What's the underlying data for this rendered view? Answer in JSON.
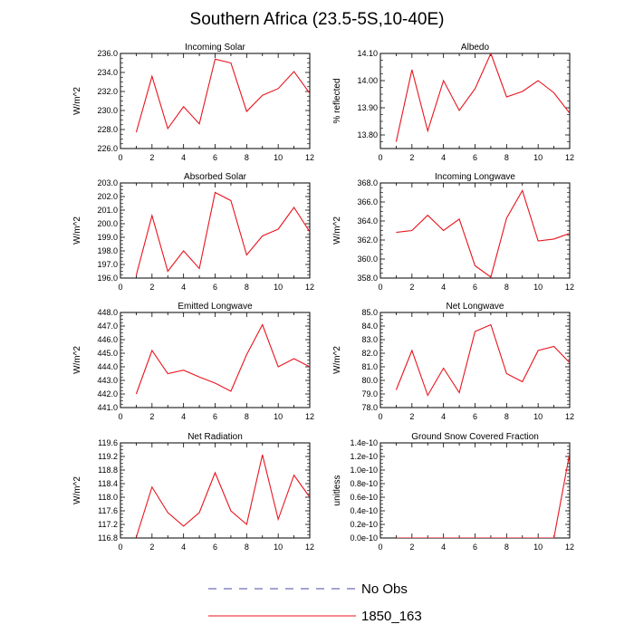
{
  "figure": {
    "title": "Southern Africa (23.5-5S,10-40E)",
    "line_color": "#e8141e"
  },
  "legend": [
    {
      "label": "No Obs",
      "color": "#4a4aa8",
      "style": "dashed"
    },
    {
      "label": "1850_163",
      "color": "#e8141e",
      "style": "solid"
    }
  ],
  "chart_data": [
    {
      "type": "line",
      "title": "Incoming Solar",
      "ylabel": "W/m^2",
      "xlim": [
        0,
        12
      ],
      "ylim": [
        226,
        236
      ],
      "x_ticks": [
        "0",
        "2",
        "4",
        "6",
        "8",
        "10",
        "12"
      ],
      "y_ticks": [
        "226.0",
        "228.0",
        "230.0",
        "232.0",
        "234.0",
        "236.0"
      ],
      "x": [
        1,
        2,
        3,
        4,
        5,
        6,
        7,
        8,
        9,
        10,
        11,
        12
      ],
      "series": [
        {
          "name": "1850_163",
          "values": [
            227.7,
            233.6,
            228.1,
            230.4,
            228.6,
            235.4,
            235.0,
            229.9,
            231.6,
            232.3,
            234.1,
            231.8
          ]
        }
      ]
    },
    {
      "type": "line",
      "title": "Albedo",
      "ylabel": "% reflected",
      "xlim": [
        0,
        12
      ],
      "ylim": [
        13.75,
        14.1
      ],
      "x_ticks": [
        "0",
        "2",
        "4",
        "6",
        "8",
        "10",
        "12"
      ],
      "y_ticks": [
        "13.80",
        "13.90",
        "14.00",
        "14.10"
      ],
      "x": [
        1,
        2,
        3,
        4,
        5,
        6,
        7,
        8,
        9,
        10,
        11,
        12
      ],
      "series": [
        {
          "name": "1850_163",
          "values": [
            13.775,
            14.04,
            13.815,
            14.0,
            13.89,
            13.97,
            14.1,
            13.94,
            13.96,
            14.0,
            13.955,
            13.88
          ]
        }
      ]
    },
    {
      "type": "line",
      "title": "Absorbed Solar",
      "ylabel": "W/m^2",
      "xlim": [
        0,
        12
      ],
      "ylim": [
        196,
        203
      ],
      "x_ticks": [
        "0",
        "2",
        "4",
        "6",
        "8",
        "10",
        "12"
      ],
      "y_ticks": [
        "196.0",
        "197.0",
        "198.0",
        "199.0",
        "200.0",
        "201.0",
        "202.0",
        "203.0"
      ],
      "x": [
        1,
        2,
        3,
        4,
        5,
        6,
        7,
        8,
        9,
        10,
        11,
        12
      ],
      "series": [
        {
          "name": "1850_163",
          "values": [
            196.2,
            200.6,
            196.5,
            198.0,
            196.7,
            202.3,
            201.7,
            197.7,
            199.1,
            199.6,
            201.2,
            199.4
          ]
        }
      ]
    },
    {
      "type": "line",
      "title": "Incoming Longwave",
      "ylabel": "W/m^2",
      "xlim": [
        0,
        12
      ],
      "ylim": [
        358,
        368
      ],
      "x_ticks": [
        "0",
        "2",
        "4",
        "6",
        "8",
        "10",
        "12"
      ],
      "y_ticks": [
        "358.0",
        "360.0",
        "362.0",
        "364.0",
        "366.0",
        "368.0"
      ],
      "x": [
        1,
        2,
        3,
        4,
        5,
        6,
        7,
        8,
        9,
        10,
        11,
        12
      ],
      "series": [
        {
          "name": "1850_163",
          "values": [
            362.8,
            363.0,
            364.6,
            363.0,
            364.2,
            359.3,
            358.1,
            364.3,
            367.2,
            361.9,
            362.1,
            362.7
          ]
        }
      ]
    },
    {
      "type": "line",
      "title": "Emitted Longwave",
      "ylabel": "W/m^2",
      "xlim": [
        0,
        12
      ],
      "ylim": [
        441,
        448
      ],
      "x_ticks": [
        "0",
        "2",
        "4",
        "6",
        "8",
        "10",
        "12"
      ],
      "y_ticks": [
        "441.0",
        "442.0",
        "443.0",
        "444.0",
        "445.0",
        "446.0",
        "447.0",
        "448.0"
      ],
      "x": [
        1,
        2,
        3,
        4,
        5,
        6,
        7,
        8,
        9,
        10,
        11,
        12
      ],
      "series": [
        {
          "name": "1850_163",
          "values": [
            442.0,
            445.2,
            443.5,
            443.75,
            443.25,
            442.8,
            442.2,
            444.9,
            447.1,
            444.0,
            444.6,
            444.0
          ]
        }
      ]
    },
    {
      "type": "line",
      "title": "Net Longwave",
      "ylabel": "W/m^2",
      "xlim": [
        0,
        12
      ],
      "ylim": [
        78,
        85
      ],
      "x_ticks": [
        "0",
        "2",
        "4",
        "6",
        "8",
        "10",
        "12"
      ],
      "y_ticks": [
        "78.0",
        "79.0",
        "80.0",
        "81.0",
        "82.0",
        "83.0",
        "84.0",
        "85.0"
      ],
      "x": [
        1,
        2,
        3,
        4,
        5,
        6,
        7,
        8,
        9,
        10,
        11,
        12
      ],
      "series": [
        {
          "name": "1850_163",
          "values": [
            79.3,
            82.2,
            78.9,
            80.9,
            79.1,
            83.6,
            84.1,
            80.5,
            79.9,
            82.2,
            82.5,
            81.3
          ]
        }
      ]
    },
    {
      "type": "line",
      "title": "Net Radiation",
      "ylabel": "W/m^2",
      "xlim": [
        0,
        12
      ],
      "ylim": [
        116.8,
        119.6
      ],
      "x_ticks": [
        "0",
        "2",
        "4",
        "6",
        "8",
        "10",
        "12"
      ],
      "y_ticks": [
        "116.8",
        "117.2",
        "117.6",
        "118.0",
        "118.4",
        "118.8",
        "119.2",
        "119.6"
      ],
      "x": [
        1,
        2,
        3,
        4,
        5,
        6,
        7,
        8,
        9,
        10,
        11,
        12
      ],
      "series": [
        {
          "name": "1850_163",
          "values": [
            116.82,
            118.3,
            117.55,
            117.15,
            117.55,
            118.72,
            117.6,
            117.2,
            119.25,
            117.35,
            118.65,
            118.0
          ]
        }
      ]
    },
    {
      "type": "line",
      "title": "Ground Snow Covered Fraction",
      "ylabel": "unitless",
      "xlim": [
        0,
        12
      ],
      "ylim": [
        0,
        1.4e-10
      ],
      "x_ticks": [
        "0",
        "2",
        "4",
        "6",
        "8",
        "10",
        "12"
      ],
      "y_ticks": [
        "0.0e-10",
        "0.2e-10",
        "0.4e-10",
        "0.6e-10",
        "0.8e-10",
        "1.0e-10",
        "1.2e-10",
        "1.4e-10"
      ],
      "x": [
        1,
        2,
        3,
        4,
        5,
        6,
        7,
        8,
        9,
        10,
        11,
        12
      ],
      "series": [
        {
          "name": "1850_163",
          "values": [
            0,
            0,
            0,
            0,
            0,
            0,
            0,
            0,
            0,
            0,
            0,
            1.25e-10
          ]
        }
      ]
    }
  ]
}
